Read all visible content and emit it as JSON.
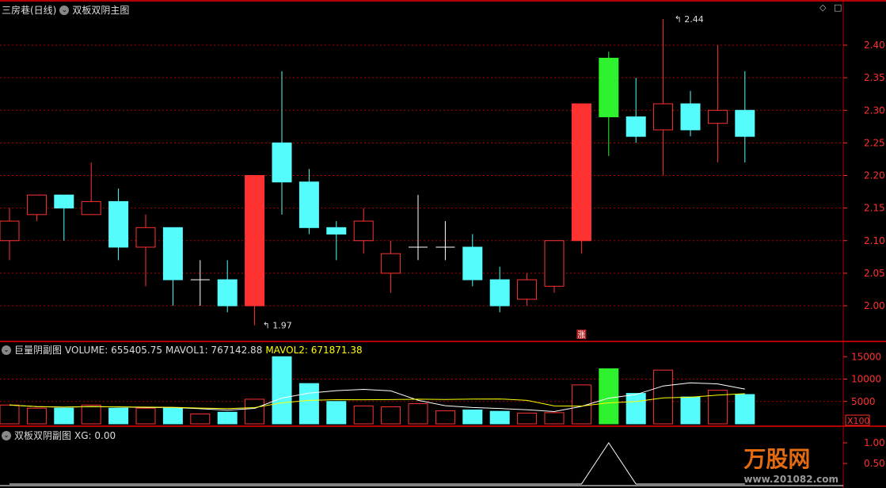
{
  "main": {
    "title": "三房巷(日线)",
    "indicator": "双板双阴主图",
    "high_label": "2.44",
    "low_label": "1.97",
    "marker": "涨",
    "icons": [
      "diamond-icon",
      "square-icon"
    ]
  },
  "volume": {
    "title": "巨量阴副图",
    "volume_label": "VOLUME: 655405.75",
    "mavol1_label": "MAVOL1: 767142.88",
    "mavol2_label": "MAVOL2: 671871.38",
    "unit": "X100"
  },
  "lower": {
    "title": "双板双阴副图",
    "xg_label": "XG: 0.00"
  },
  "watermark": {
    "brand": "万股网",
    "site": "www.201082.com"
  },
  "colors": {
    "up": "#ff3232",
    "down": "#54fcfc",
    "limit": "#2ef22e",
    "grid": "#b00000",
    "axis": "#ff3030",
    "mavol1": "#ffffff",
    "mavol2": "#ffff00"
  },
  "chart_data": [
    {
      "type": "candlestick",
      "yticks": [
        "2.40",
        "2.35",
        "2.30",
        "2.25",
        "2.20",
        "2.15",
        "2.10",
        "2.05",
        "2.00"
      ],
      "ylim": [
        1.94,
        2.46
      ],
      "ohlc": [
        [
          2.1,
          2.15,
          2.07,
          2.13
        ],
        [
          2.14,
          2.17,
          2.13,
          2.17
        ],
        [
          2.17,
          2.17,
          2.1,
          2.15
        ],
        [
          2.14,
          2.22,
          2.14,
          2.16
        ],
        [
          2.16,
          2.18,
          2.07,
          2.09
        ],
        [
          2.09,
          2.14,
          2.03,
          2.12
        ],
        [
          2.12,
          2.12,
          2.0,
          2.04
        ],
        [
          2.04,
          2.07,
          2.0,
          2.04
        ],
        [
          2.04,
          2.07,
          1.99,
          2.0
        ],
        [
          2.0,
          2.2,
          1.97,
          2.2
        ],
        [
          2.25,
          2.36,
          2.14,
          2.19
        ],
        [
          2.19,
          2.21,
          2.11,
          2.12
        ],
        [
          2.12,
          2.13,
          2.07,
          2.11
        ],
        [
          2.1,
          2.15,
          2.08,
          2.13
        ],
        [
          2.05,
          2.1,
          2.02,
          2.08
        ],
        [
          2.09,
          2.17,
          2.07,
          2.09
        ],
        [
          2.09,
          2.13,
          2.07,
          2.09
        ],
        [
          2.09,
          2.11,
          2.03,
          2.04
        ],
        [
          2.04,
          2.06,
          1.99,
          2.0
        ],
        [
          2.01,
          2.05,
          2.0,
          2.04
        ],
        [
          2.03,
          2.1,
          2.02,
          2.1
        ],
        [
          2.1,
          2.31,
          2.08,
          2.31
        ],
        [
          2.38,
          2.39,
          2.23,
          2.29
        ],
        [
          2.29,
          2.35,
          2.25,
          2.26
        ],
        [
          2.27,
          2.44,
          2.2,
          2.31
        ],
        [
          2.31,
          2.33,
          2.26,
          2.27
        ],
        [
          2.28,
          2.4,
          2.22,
          2.3
        ],
        [
          2.3,
          2.36,
          2.22,
          2.26
        ]
      ],
      "highlight_index": 22
    },
    {
      "type": "bar",
      "yticks": [
        "15000",
        "10000",
        "5000"
      ],
      "ylim": [
        0,
        17000
      ],
      "values": [
        4200,
        3500,
        3500,
        4200,
        3500,
        3500,
        3500,
        2200,
        2600,
        5500,
        15000,
        9000,
        5000,
        4000,
        3800,
        4500,
        2900,
        3100,
        2800,
        2400,
        2500,
        8700,
        12300,
        6800,
        12000,
        6000,
        7500,
        6550
      ]
    },
    {
      "type": "line",
      "yticks": [
        "1.00",
        "0.50"
      ],
      "ylim": [
        0,
        1.1
      ],
      "values": [
        0,
        0,
        0,
        0,
        0,
        0,
        0,
        0,
        0,
        0,
        0,
        0,
        0,
        0,
        0,
        0,
        0,
        0,
        0,
        0,
        0,
        0,
        1,
        0,
        0,
        0,
        0,
        0
      ]
    }
  ]
}
